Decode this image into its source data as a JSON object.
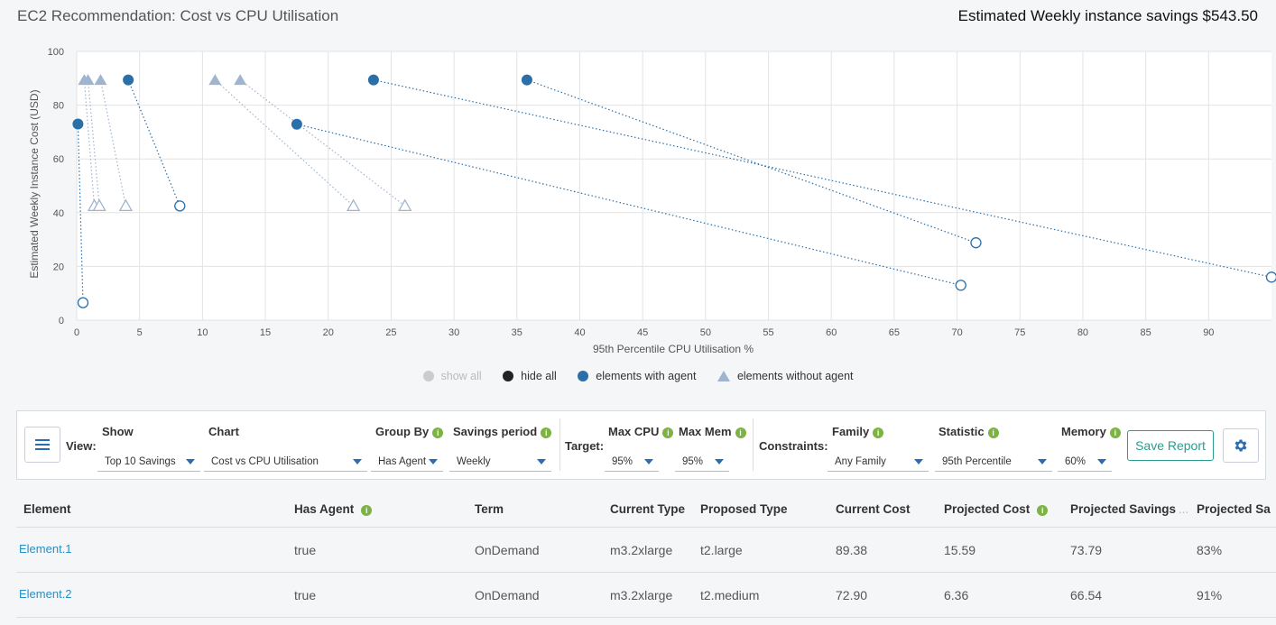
{
  "header": {
    "title": "EC2 Recommendation: Cost vs CPU Utilisation",
    "savings": "Estimated Weekly instance savings $543.50"
  },
  "chart_data": {
    "type": "scatter",
    "xlabel": "95th Percentile CPU Utilisation %",
    "ylabel": "Estimated Weekly Instance Cost (USD)",
    "xlim": [
      0,
      95
    ],
    "ylim": [
      0,
      100
    ],
    "xticks": [
      0,
      5,
      10,
      15,
      20,
      25,
      30,
      35,
      40,
      45,
      50,
      55,
      60,
      65,
      70,
      75,
      80,
      85,
      90
    ],
    "yticks": [
      0,
      20,
      40,
      60,
      80,
      100
    ],
    "grid": true,
    "legend_placement": "bottom",
    "series": [
      {
        "name": "elements with agent",
        "color": "#2b6fa8",
        "links": [
          {
            "from": [
              0.1,
              73
            ],
            "to": [
              0.5,
              6.5
            ]
          },
          {
            "from": [
              4.1,
              89.4
            ],
            "to": [
              8.2,
              42.5
            ]
          },
          {
            "from": [
              17.5,
              72.9
            ],
            "to": [
              70.3,
              13
            ]
          },
          {
            "from": [
              23.6,
              89.4
            ],
            "to": [
              95,
              16
            ]
          },
          {
            "from": [
              35.8,
              89.4
            ],
            "to": [
              71.5,
              28.8
            ]
          }
        ]
      },
      {
        "name": "elements without agent",
        "color": "#9fb5cf",
        "links": [
          {
            "from": [
              0.6,
              89.4
            ],
            "to": [
              1.4,
              42.5
            ]
          },
          {
            "from": [
              0.9,
              89.4
            ],
            "to": [
              1.8,
              42.5
            ]
          },
          {
            "from": [
              1.9,
              89.4
            ],
            "to": [
              3.9,
              42.5
            ]
          },
          {
            "from": [
              11,
              89.4
            ],
            "to": [
              22,
              42.5
            ]
          },
          {
            "from": [
              13,
              89.4
            ],
            "to": [
              26.1,
              42.5
            ]
          }
        ]
      }
    ]
  },
  "legend": {
    "show_all": "show all",
    "hide_all": "hide all",
    "with_agent": "elements with agent",
    "without_agent": "elements without agent"
  },
  "toolbar": {
    "view_label": "View:",
    "show": {
      "label": "Show",
      "value": "Top 10 Savings"
    },
    "chart": {
      "label": "Chart",
      "value": "Cost vs CPU Utilisation"
    },
    "group_by": {
      "label": "Group By",
      "value": "Has Agent"
    },
    "savings_period": {
      "label": "Savings period",
      "value": "Weekly"
    },
    "target_label": "Target:",
    "max_cpu": {
      "label": "Max CPU",
      "value": "95%"
    },
    "max_mem": {
      "label": "Max Mem",
      "value": "95%"
    },
    "constraints_label": "Constraints:",
    "family": {
      "label": "Family",
      "value": "Any Family"
    },
    "statistic": {
      "label": "Statistic",
      "value": "95th Percentile"
    },
    "memory": {
      "label": "Memory",
      "value": "60%"
    },
    "save_report": "Save Report",
    "info_glyph": "i"
  },
  "table": {
    "headers": [
      "Element",
      "Has Agent",
      "Term",
      "Current Type",
      "Proposed Type",
      "Current Cost",
      "Projected Cost",
      "Projected Savings",
      "Projected Sa"
    ],
    "ellipsis": "...",
    "rows": [
      [
        "Element.1",
        "true",
        "OnDemand",
        "m3.2xlarge",
        "t2.large",
        "89.38",
        "15.59",
        "73.79",
        "83%"
      ],
      [
        "Element.2",
        "true",
        "OnDemand",
        "m3.2xlarge",
        "t2.medium",
        "72.90",
        "6.36",
        "66.54",
        "91%"
      ]
    ]
  }
}
